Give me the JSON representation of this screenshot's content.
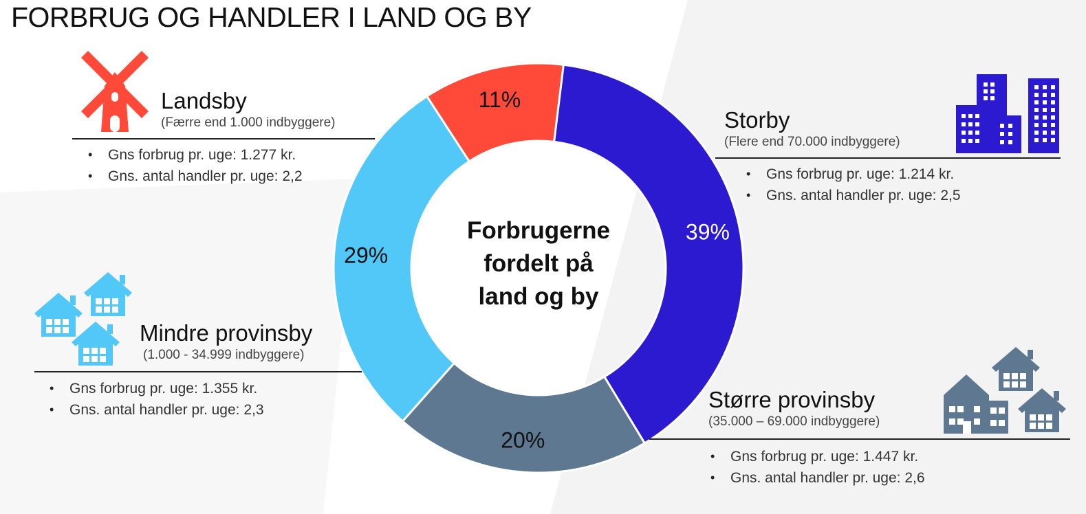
{
  "title": "FORBRUG OG HANDLER I LAND OG BY",
  "center_label": [
    "Forbrugerne",
    "fordelt på",
    "land og by"
  ],
  "colors": {
    "landsby": "#ff4a3a",
    "storby": "#2b1ad0",
    "stoerre": "#5d7890",
    "mindre": "#52c8f8"
  },
  "segments": {
    "landsby": {
      "name": "Landsby",
      "sub": "(Færre end 1.000 indbyggere)",
      "bullets": [
        "Gns forbrug pr. uge: 1.277 kr.",
        "Gns. antal handler pr. uge: 2,2"
      ],
      "icon": "windmill-icon"
    },
    "storby": {
      "name": "Storby",
      "sub": "(Flere end 70.000 indbyggere)",
      "bullets": [
        "Gns forbrug pr. uge: 1.214 kr.",
        "Gns. antal handler pr. uge: 2,5"
      ],
      "icon": "buildings-icon"
    },
    "stoerre": {
      "name": "Større provinsby",
      "sub": "(35.000 – 69.000 indbyggere)",
      "bullets": [
        "Gns forbrug pr. uge: 1.447 kr.",
        "Gns. antal handler pr. uge: 2,6"
      ],
      "icon": "town-houses-icon"
    },
    "mindre": {
      "name": "Mindre provinsby",
      "sub": "(1.000 - 34.999 indbyggere)",
      "bullets": [
        "Gns forbrug pr. uge: 1.355 kr.",
        "Gns. antal handler pr. uge: 2,3"
      ],
      "icon": "houses-icon"
    }
  },
  "chart_data": {
    "type": "pie",
    "title": "",
    "categories": [
      "Storby",
      "Større provinsby",
      "Mindre provinsby",
      "Landsby"
    ],
    "values": [
      39,
      20,
      29,
      11
    ],
    "labels": [
      "39%",
      "20%",
      "29%",
      "11%"
    ],
    "colors": [
      "#2b1ad0",
      "#5d7890",
      "#52c8f8",
      "#ff4a3a"
    ],
    "label_colors": [
      "#ffffff",
      "#111111",
      "#111111",
      "#111111"
    ],
    "start_angle_deg": 7
  }
}
